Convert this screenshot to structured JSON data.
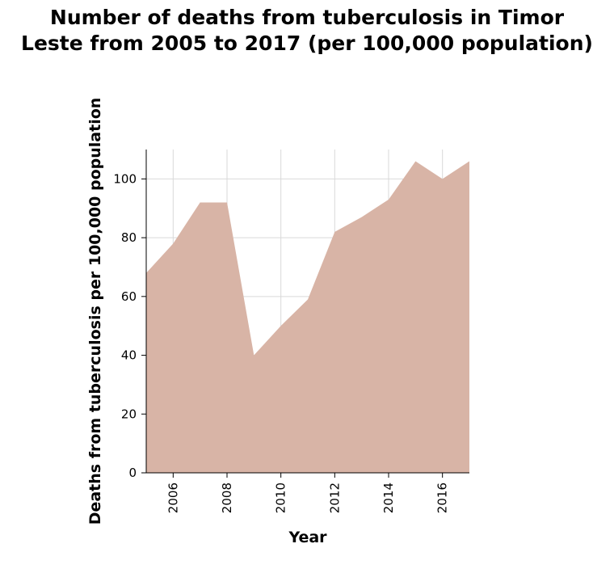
{
  "chart_data": {
    "type": "area",
    "title_line1": "Number of deaths from tuberculosis in Timor",
    "title_line2": "Leste from 2005 to 2017 (per 100,000 population)",
    "xlabel": "Year",
    "ylabel": "Deaths from tuberculosis per 100,000 population",
    "x": [
      2005,
      2006,
      2007,
      2008,
      2009,
      2010,
      2011,
      2012,
      2013,
      2014,
      2015,
      2016,
      2017
    ],
    "values": [
      68,
      78,
      92,
      92,
      40,
      50,
      59,
      82,
      87,
      93,
      106,
      100,
      106
    ],
    "xlim": [
      2005,
      2017
    ],
    "ylim": [
      0,
      110
    ],
    "x_ticks": [
      2006,
      2008,
      2010,
      2012,
      2014,
      2016
    ],
    "x_tick_labels": [
      "2006",
      "2008",
      "2010",
      "2012",
      "2014",
      "2016"
    ],
    "y_ticks": [
      0,
      20,
      40,
      60,
      80,
      100
    ],
    "y_tick_labels": [
      "0",
      "20",
      "40",
      "60",
      "80",
      "100"
    ],
    "grid": true,
    "legend": "none",
    "colors": {
      "fill": "#d8b4a6",
      "grid": "#d9d9d9",
      "axis": "#000000"
    }
  }
}
